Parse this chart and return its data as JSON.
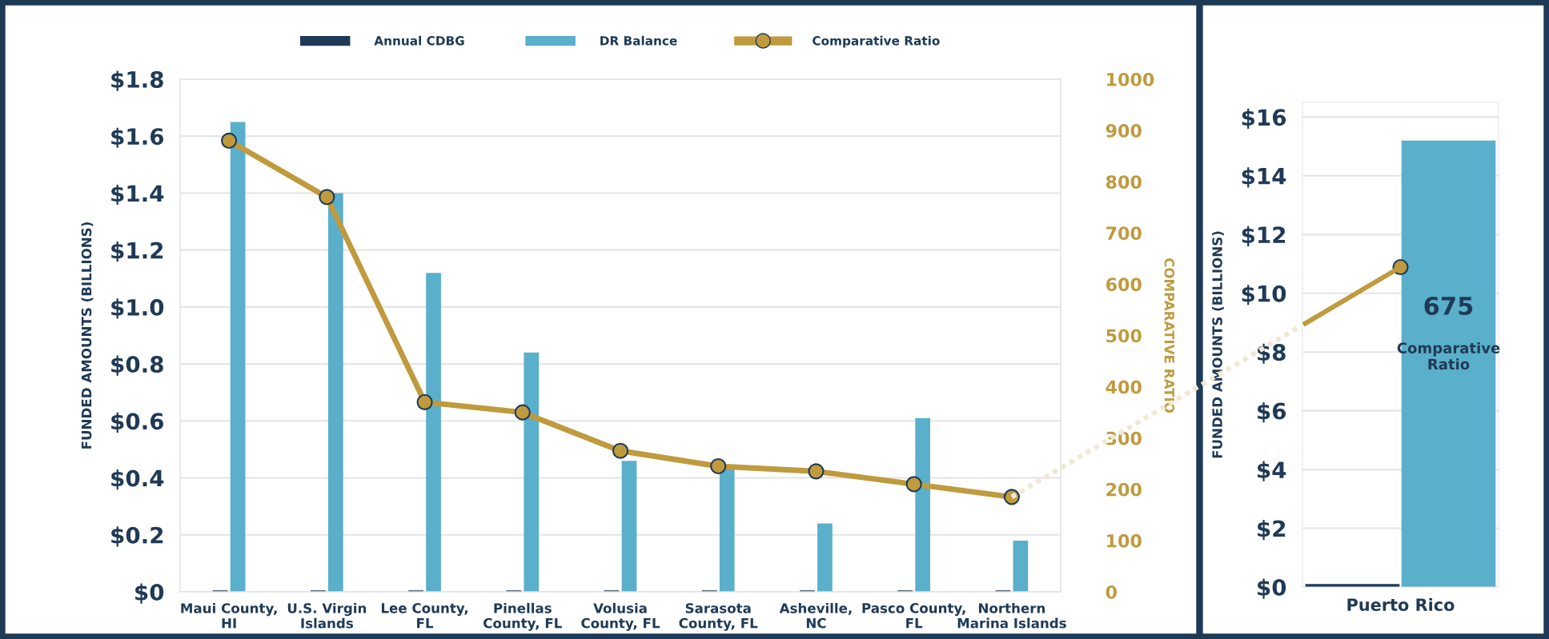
{
  "chart_data": [
    {
      "type": "bar",
      "categories": [
        "Maui County,\nHI",
        "U.S. Virgin\nIslands",
        "Lee County,\nFL",
        "Pinellas\nCounty, FL",
        "Volusia\nCounty, FL",
        "Sarasota\nCounty, FL",
        "Asheville,\nNC",
        "Pasco County,\nFL",
        "Northern\nMarina Islands"
      ],
      "series": [
        {
          "name": "Annual CDBG",
          "color": "#1f3a56",
          "values": [
            0.005,
            0.005,
            0.005,
            0.005,
            0.005,
            0.005,
            0.005,
            0.005,
            0.005
          ]
        },
        {
          "name": "DR Balance",
          "color": "#5aafca",
          "values": [
            1.65,
            1.4,
            1.12,
            0.84,
            0.46,
            0.43,
            0.24,
            0.61,
            0.18
          ]
        },
        {
          "name": "Comparative Ratio",
          "type": "line",
          "axis": "y2",
          "color": "#bf9b3e",
          "values": [
            880,
            770,
            370,
            350,
            275,
            245,
            235,
            210,
            185
          ]
        }
      ],
      "ylabel": "FUNDED AMOUNTS (BILLIONS)",
      "y2label": "COMPARATIVE RATIO",
      "ylim": [
        0,
        1.8
      ],
      "yticks": [
        {
          "value": 0,
          "label": "$0"
        },
        {
          "value": 0.2,
          "label": "$0.2"
        },
        {
          "value": 0.4,
          "label": "$0.4"
        },
        {
          "value": 0.6,
          "label": "$0.6"
        },
        {
          "value": 0.8,
          "label": "$0.8"
        },
        {
          "value": 1.0,
          "label": "$1.0"
        },
        {
          "value": 1.2,
          "label": "$1.2"
        },
        {
          "value": 1.4,
          "label": "$1.4"
        },
        {
          "value": 1.6,
          "label": "$1.6"
        },
        {
          "value": 1.8,
          "label": "$1.8"
        }
      ],
      "y2lim": [
        0,
        1000
      ],
      "y2ticks": [
        0,
        100,
        200,
        300,
        400,
        500,
        600,
        700,
        800,
        900,
        1000
      ],
      "grid": "y",
      "legend": "top",
      "marker": "circle",
      "line_style": "solid"
    },
    {
      "type": "bar",
      "categories": [
        "Puerto Rico"
      ],
      "series": [
        {
          "color": "#1f3a56",
          "values": [
            0.1
          ]
        },
        {
          "color": "#5aafca",
          "values": [
            15.2
          ]
        }
      ],
      "ylabel": "FUNDED AMOUNTS (BILLIONS)",
      "ylim": [
        0,
        16.5
      ],
      "yticks": [
        {
          "value": 0,
          "label": "$0"
        },
        {
          "value": 2,
          "label": "$2"
        },
        {
          "value": 4,
          "label": "$4"
        },
        {
          "value": 6,
          "label": "$6"
        },
        {
          "value": 8,
          "label": "$8"
        },
        {
          "value": 10,
          "label": "$10"
        },
        {
          "value": 12,
          "label": "$12"
        },
        {
          "value": 14,
          "label": "$14"
        },
        {
          "value": 16,
          "label": "$16"
        }
      ],
      "annotations": [
        "675",
        "Comparative Ratio"
      ],
      "grid": "y"
    }
  ]
}
